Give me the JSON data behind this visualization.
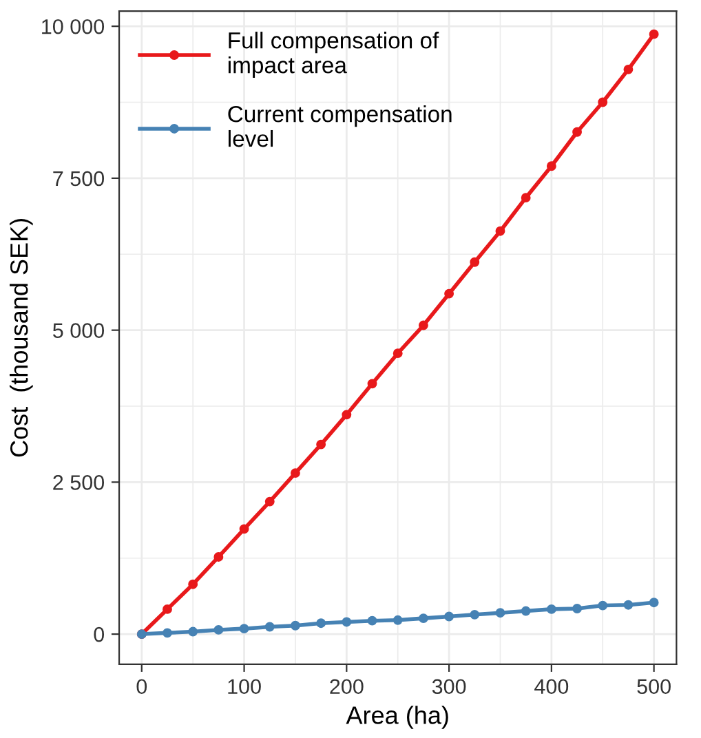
{
  "chart_data": {
    "type": "line",
    "xlabel": "Area (ha)",
    "ylabel": "Cost  (thousand SEK)",
    "x": [
      0,
      25,
      50,
      75,
      100,
      125,
      150,
      175,
      200,
      225,
      250,
      275,
      300,
      325,
      350,
      375,
      400,
      425,
      450,
      475,
      500
    ],
    "series": [
      {
        "name": "Full compensation of\nimpact area",
        "color": "#e8191b",
        "values": [
          0,
          410,
          820,
          1270,
          1730,
          2180,
          2650,
          3120,
          3610,
          4120,
          4620,
          5080,
          5600,
          6120,
          6630,
          7180,
          7700,
          8260,
          8750,
          9290,
          9870
        ]
      },
      {
        "name": "Current compensation\nlevel",
        "color": "#4682b4",
        "values": [
          0,
          20,
          40,
          70,
          90,
          120,
          140,
          180,
          200,
          220,
          230,
          260,
          290,
          320,
          350,
          380,
          410,
          420,
          470,
          480,
          520
        ]
      }
    ],
    "xlim": [
      -22,
      522
    ],
    "xticks": [
      0,
      100,
      200,
      300,
      400,
      500
    ],
    "ylim": [
      -495,
      10250
    ],
    "yticks": [
      0,
      {
        "value": 2500,
        "label": "2 500"
      },
      {
        "value": 5000,
        "label": "5 000"
      },
      {
        "value": 7500,
        "label": "7 500"
      },
      {
        "value": 10000,
        "label": "10 000"
      }
    ],
    "grid": true,
    "legend": "top left",
    "marker": "circle",
    "line_style": "solid"
  }
}
